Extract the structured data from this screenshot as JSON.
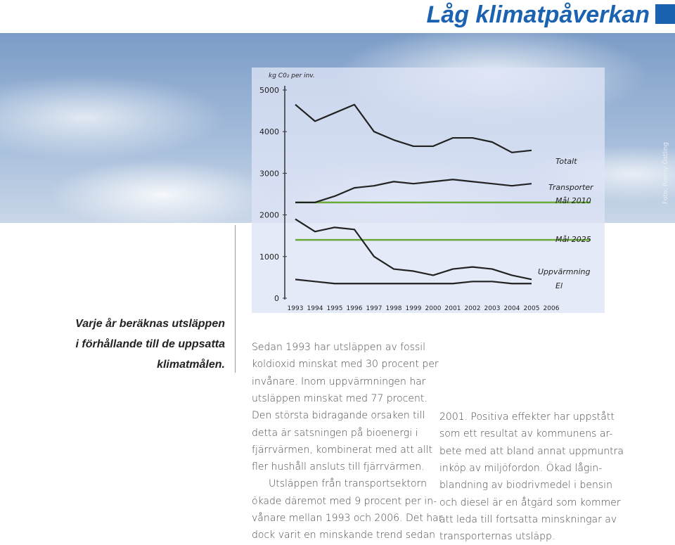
{
  "header": {
    "title": "Låg klimatpåverkan",
    "photo_credit": "Foto: Ronny Östling"
  },
  "chart_data": {
    "type": "line",
    "y_label": "kg C0₂ per inv.",
    "categories": [
      "1993",
      "1994",
      "1995",
      "1996",
      "1997",
      "1998",
      "1999",
      "2000",
      "2001",
      "2002",
      "2003",
      "2004",
      "2005",
      "2006"
    ],
    "series": [
      {
        "name": "Totalt",
        "color": "#222222",
        "values": [
          4650,
          4250,
          4450,
          4650,
          4000,
          3800,
          3650,
          3650,
          3850,
          3850,
          3750,
          3500,
          3550,
          null
        ]
      },
      {
        "name": "Transporter",
        "color": "#222222",
        "values": [
          2300,
          2300,
          2450,
          2650,
          2700,
          2800,
          2750,
          2800,
          2850,
          2800,
          2750,
          2700,
          2750,
          null
        ]
      },
      {
        "name": "Uppvärmning",
        "color": "#222222",
        "values": [
          1900,
          1600,
          1700,
          1650,
          1000,
          700,
          650,
          550,
          700,
          750,
          700,
          550,
          450,
          null
        ]
      },
      {
        "name": "El",
        "color": "#222222",
        "values": [
          450,
          400,
          350,
          350,
          350,
          350,
          350,
          350,
          350,
          400,
          400,
          350,
          350,
          null
        ]
      }
    ],
    "targets": [
      {
        "name": "Mål 2010",
        "color": "#6aaa3a",
        "value": 2300
      },
      {
        "name": "Mål 2025",
        "color": "#6aaa3a",
        "value": 1400
      }
    ],
    "ylim": [
      0,
      5000
    ],
    "yticks": [
      0,
      1000,
      2000,
      3000,
      4000,
      5000
    ],
    "grid": false
  },
  "caption": [
    "Varje år beräknas utsläppen",
    "i förhållande till de uppsatta",
    "klimatmålen."
  ],
  "body": {
    "column1": [
      "Sedan 1993 har utsläppen av fossil",
      "koldioxid minskat med 30 procent per",
      "invånare. Inom uppvärmningen har",
      "utsläppen minskat med 77 procent.",
      "Den största bidragande orsaken till",
      "detta är satsningen på bioenergi i",
      "fjärrvärmen, kombinerat med att allt",
      "fler hushåll ansluts till fjärrvärmen.",
      "Utsläppen från transportsektorn",
      "ökade däremot med 9 procent per in-",
      "vånare mellan 1993 och 2006. Det har",
      "dock varit en minskande trend sedan"
    ],
    "column2": [
      "2001. Positiva effekter har uppstått",
      "som ett resultat av kommunens ar-",
      "bete med att bland annat uppmuntra",
      "inköp av miljöfordon. Ökad lågin-",
      "blandning av biodrivmedel i bensin",
      "och diesel är en åtgärd som kommer",
      "att leda till fortsatta minskningar av",
      "transporternas utsläpp."
    ]
  }
}
